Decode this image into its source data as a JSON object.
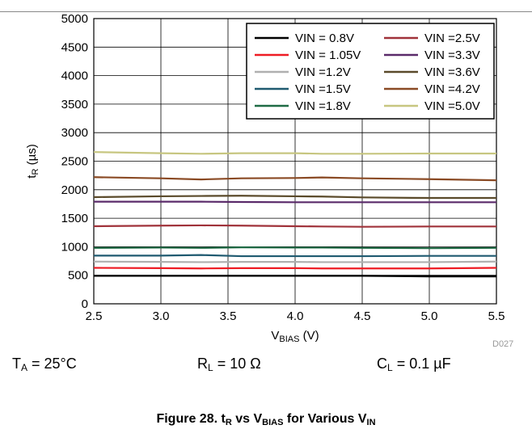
{
  "chart_data": {
    "type": "line",
    "x": [
      2.5,
      3.0,
      3.3,
      3.6,
      4.0,
      4.2,
      4.5,
      5.0,
      5.5
    ],
    "xlim": [
      2.5,
      5.5
    ],
    "ylim": [
      0,
      5000
    ],
    "xticks": [
      "2.5",
      "3.0",
      "3.5",
      "4.0",
      "4.5",
      "5.0",
      "5.5"
    ],
    "xtick_values": [
      2.5,
      3.0,
      3.5,
      4.0,
      4.5,
      5.0,
      5.5
    ],
    "yticks": [
      "0",
      "500",
      "1000",
      "1500",
      "2000",
      "2500",
      "3000",
      "3500",
      "4000",
      "4500",
      "5000"
    ],
    "ytick_values": [
      0,
      500,
      1000,
      1500,
      2000,
      2500,
      3000,
      3500,
      4000,
      4500,
      5000
    ],
    "ylabel_main": "t",
    "ylabel_sub": "R",
    "ylabel_unit": " (µs)",
    "xlabel_main": "V",
    "xlabel_sub": "BIAS",
    "xlabel_unit": " (V)",
    "grid": true,
    "legend_position": "top-right",
    "series": [
      {
        "name": "VIN = 0.8V",
        "color": "#000000",
        "values": [
          490,
          490,
          490,
          490,
          490,
          490,
          490,
          480,
          480
        ]
      },
      {
        "name": "VIN = 1.05V",
        "color": "#ee1c24",
        "values": [
          630,
          625,
          620,
          625,
          625,
          620,
          620,
          620,
          630
        ]
      },
      {
        "name": "VIN =1.2V",
        "color": "#b0b0b0",
        "values": [
          740,
          735,
          730,
          735,
          735,
          730,
          730,
          730,
          740
        ]
      },
      {
        "name": "VIN =1.5V",
        "color": "#1f5a70",
        "values": [
          845,
          845,
          855,
          835,
          835,
          835,
          835,
          840,
          840
        ]
      },
      {
        "name": "VIN =1.8V",
        "color": "#1f6b45",
        "values": [
          980,
          985,
          980,
          990,
          985,
          985,
          980,
          975,
          980
        ]
      },
      {
        "name": "VIN =2.5V",
        "color": "#a0323a",
        "values": [
          1360,
          1370,
          1375,
          1370,
          1360,
          1355,
          1350,
          1355,
          1355
        ]
      },
      {
        "name": "VIN =3.3V",
        "color": "#5a2a6a",
        "values": [
          1790,
          1790,
          1790,
          1785,
          1780,
          1780,
          1780,
          1780,
          1780
        ]
      },
      {
        "name": "VIN =3.6V",
        "color": "#5a4a2a",
        "values": [
          1870,
          1885,
          1890,
          1895,
          1885,
          1880,
          1865,
          1855,
          1855
        ]
      },
      {
        "name": "VIN =4.2V",
        "color": "#8a4a24",
        "values": [
          2220,
          2200,
          2180,
          2200,
          2205,
          2215,
          2200,
          2185,
          2165
        ]
      },
      {
        "name": "VIN =5.0V",
        "color": "#c7c680",
        "values": [
          2660,
          2640,
          2630,
          2640,
          2640,
          2630,
          2630,
          2635,
          2635
        ]
      }
    ]
  },
  "conditions": {
    "ta_main": "T",
    "ta_sub": "A",
    "ta_value": " = 25°C",
    "rl_main": "R",
    "rl_sub": "L",
    "rl_value": " = 10 Ω",
    "cl_main": "C",
    "cl_sub": "L",
    "cl_value": " = 0.1 µF"
  },
  "figure_id": "D027",
  "caption": {
    "prefix": "Figure 28. t",
    "sub1": "R",
    "mid": " vs V",
    "sub2": "BIAS",
    "mid2": " for Various V",
    "sub3": "IN"
  }
}
